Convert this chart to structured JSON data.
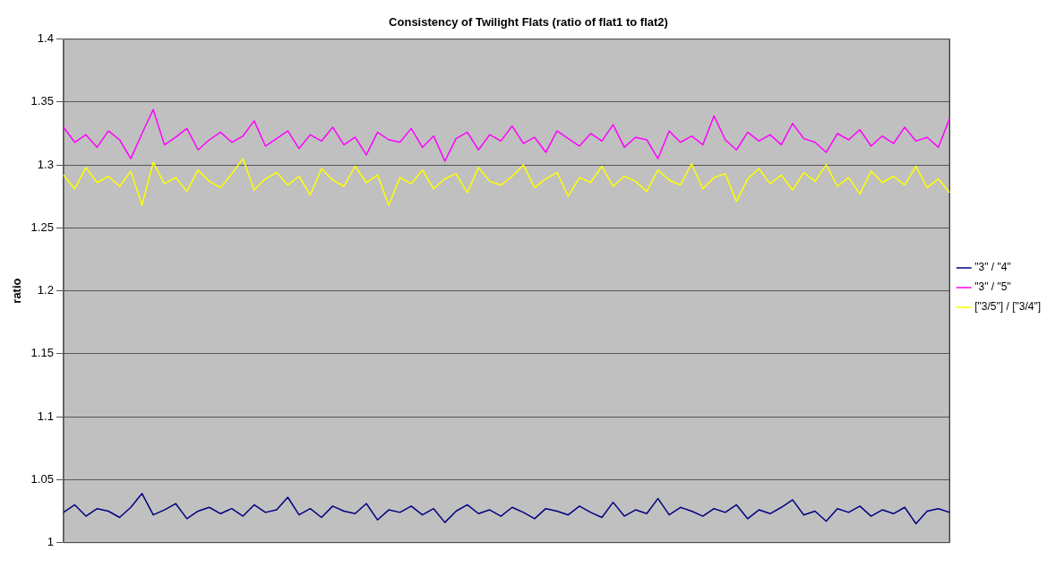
{
  "chart_data": {
    "type": "line",
    "title": "Consistency of Twilight Flats (ratio of flat1 to flat2)",
    "ylabel": "ratio",
    "categories": [
      null,
      null,
      null,
      null,
      null,
      null,
      null,
      null,
      null,
      null,
      null,
      null,
      null,
      null,
      null,
      null,
      null,
      null,
      null,
      null,
      null,
      null,
      null,
      null,
      null,
      null,
      null,
      null,
      null,
      null,
      null,
      null,
      null,
      null,
      null,
      null,
      null,
      null,
      null,
      null,
      null,
      null,
      null,
      null,
      null,
      null,
      null,
      null,
      null,
      null,
      null,
      null,
      null,
      null,
      null,
      null,
      null,
      null,
      null,
      null,
      null,
      null,
      null,
      null,
      null,
      null,
      null,
      null,
      null,
      null,
      null,
      null,
      null,
      null,
      null,
      null,
      null,
      null,
      null,
      null
    ],
    "series": [
      {
        "name": "\"3\" / \"4\"",
        "color": "#000080",
        "values": [
          1.024,
          1.03,
          1.021,
          1.027,
          1.025,
          1.02,
          1.028,
          1.039,
          1.022,
          1.026,
          1.031,
          1.019,
          1.025,
          1.028,
          1.023,
          1.027,
          1.021,
          1.03,
          1.024,
          1.026,
          1.036,
          1.022,
          1.027,
          1.02,
          1.029,
          1.025,
          1.023,
          1.031,
          1.018,
          1.026,
          1.024,
          1.029,
          1.022,
          1.027,
          1.016,
          1.025,
          1.03,
          1.023,
          1.026,
          1.021,
          1.028,
          1.024,
          1.019,
          1.027,
          1.025,
          1.022,
          1.029,
          1.024,
          1.02,
          1.032,
          1.021,
          1.026,
          1.023,
          1.035,
          1.022,
          1.028,
          1.025,
          1.021,
          1.027,
          1.024,
          1.03,
          1.019,
          1.026,
          1.023,
          1.028,
          1.034,
          1.022,
          1.025,
          1.017,
          1.027,
          1.024,
          1.029,
          1.021,
          1.026,
          1.023,
          1.028,
          1.015,
          1.025,
          1.027,
          1.024
        ]
      },
      {
        "name": "\"3\" / \"5\"",
        "color": "#ff00ff",
        "values": [
          1.33,
          1.318,
          1.324,
          1.314,
          1.327,
          1.32,
          1.305,
          1.325,
          1.344,
          1.316,
          1.322,
          1.329,
          1.312,
          1.32,
          1.326,
          1.318,
          1.323,
          1.335,
          1.315,
          1.321,
          1.327,
          1.313,
          1.324,
          1.319,
          1.33,
          1.316,
          1.322,
          1.308,
          1.326,
          1.32,
          1.318,
          1.329,
          1.314,
          1.323,
          1.303,
          1.321,
          1.326,
          1.312,
          1.324,
          1.319,
          1.331,
          1.317,
          1.322,
          1.31,
          1.327,
          1.321,
          1.315,
          1.325,
          1.319,
          1.332,
          1.314,
          1.322,
          1.32,
          1.305,
          1.327,
          1.318,
          1.323,
          1.316,
          1.339,
          1.32,
          1.312,
          1.326,
          1.319,
          1.324,
          1.316,
          1.333,
          1.321,
          1.318,
          1.31,
          1.325,
          1.32,
          1.328,
          1.315,
          1.323,
          1.317,
          1.33,
          1.319,
          1.322,
          1.314,
          1.337
        ]
      },
      {
        "name": "[\"3/5\"] / [\"3/4\"]",
        "color": "#ffff00",
        "values": [
          1.292,
          1.281,
          1.298,
          1.286,
          1.291,
          1.283,
          1.295,
          1.268,
          1.302,
          1.285,
          1.29,
          1.279,
          1.296,
          1.287,
          1.282,
          1.293,
          1.305,
          1.28,
          1.289,
          1.294,
          1.284,
          1.291,
          1.276,
          1.297,
          1.288,
          1.283,
          1.299,
          1.286,
          1.292,
          1.268,
          1.29,
          1.285,
          1.296,
          1.281,
          1.289,
          1.293,
          1.278,
          1.298,
          1.287,
          1.284,
          1.291,
          1.3,
          1.282,
          1.289,
          1.294,
          1.275,
          1.29,
          1.286,
          1.299,
          1.283,
          1.291,
          1.287,
          1.279,
          1.296,
          1.288,
          1.284,
          1.301,
          1.281,
          1.29,
          1.293,
          1.271,
          1.289,
          1.297,
          1.285,
          1.292,
          1.28,
          1.294,
          1.287,
          1.3,
          1.283,
          1.29,
          1.277,
          1.295,
          1.286,
          1.291,
          1.284,
          1.299,
          1.282,
          1.289,
          1.278
        ]
      }
    ],
    "ylim": [
      1,
      1.4
    ],
    "yticks": [
      1,
      1.05,
      1.1,
      1.15,
      1.2,
      1.25,
      1.3,
      1.35,
      1.4
    ],
    "grid": "y",
    "legend": "right",
    "marker": "none",
    "line_style": "solid"
  }
}
